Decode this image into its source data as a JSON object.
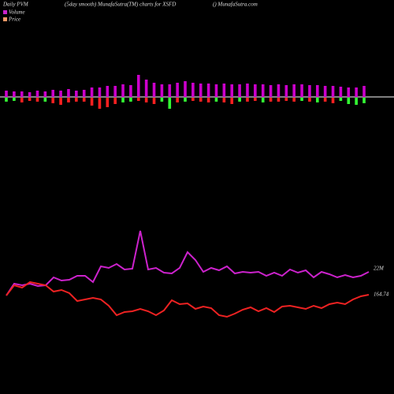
{
  "chart_data": {
    "type": "pvm",
    "title": "Daily PVM",
    "subtitle": "(5day smooth) MunafaSutra(TM) charts for XSFD",
    "source": "() MunafaSutra.com",
    "bar_color": "#cc00cc",
    "upper_values": [
      8,
      7,
      7,
      6,
      8,
      7,
      9,
      8,
      10,
      8,
      9,
      12,
      12,
      14,
      14,
      16,
      15,
      28,
      22,
      18,
      16,
      16,
      18,
      20,
      18,
      17,
      17,
      16,
      17,
      16,
      16,
      17,
      16,
      16,
      15,
      16,
      15,
      16,
      16,
      15,
      15,
      14,
      14,
      13,
      12,
      12,
      14
    ],
    "lower_values": [
      5,
      4,
      6,
      4,
      5,
      5,
      7,
      9,
      6,
      5,
      5,
      10,
      14,
      12,
      8,
      6,
      5,
      4,
      6,
      8,
      5,
      14,
      6,
      5,
      4,
      5,
      6,
      5,
      6,
      8,
      5,
      5,
      4,
      6,
      5,
      5,
      4,
      5,
      4,
      5,
      6,
      5,
      7,
      4,
      8,
      9,
      7
    ],
    "lower_colors": [
      "#33ff33",
      "#33ff33",
      "#ff2020",
      "#ff2020",
      "#ff2020",
      "#33ff33",
      "#ff2020",
      "#ff2020",
      "#ff2020",
      "#ff2020",
      "#ff2020",
      "#ff2020",
      "#ff2020",
      "#ff2020",
      "#ff2020",
      "#33ff33",
      "#33ff33",
      "#ff2020",
      "#ff2020",
      "#ff2020",
      "#33ff33",
      "#33ff33",
      "#ff2020",
      "#33ff33",
      "#ff2020",
      "#ff2020",
      "#ff2020",
      "#33ff33",
      "#ff2020",
      "#ff2020",
      "#33ff33",
      "#ff2020",
      "#ff2020",
      "#33ff33",
      "#ff2020",
      "#ff2020",
      "#ff2020",
      "#ff2020",
      "#33ff33",
      "#ff2020",
      "#33ff33",
      "#ff2020",
      "#ff2020",
      "#33ff33",
      "#33ff33",
      "#33ff33",
      "#33ff33"
    ],
    "series": [
      {
        "name": "Volume",
        "color": "#cc22cc",
        "ylim": [
          -9000000,
          91000000
        ],
        "values": [
          16000000,
          19000000,
          18600000,
          19000000,
          18400000,
          18600000,
          20600000,
          19800000,
          20000000,
          21000000,
          21000000,
          19400000,
          23400000,
          23000000,
          24000000,
          22600000,
          22800000,
          32400000,
          22600000,
          23000000,
          21800000,
          21600000,
          23000000,
          27000000,
          25000000,
          22000000,
          23000000,
          22400000,
          23400000,
          21600000,
          22000000,
          21800000,
          22000000,
          21000000,
          21800000,
          21000000,
          22600000,
          21800000,
          22400000,
          20600000,
          22000000,
          21400000,
          20600000,
          21200000,
          20600000,
          21000000,
          22000000
        ],
        "end_label": "22M"
      },
      {
        "name": "Price",
        "color": "#ee2222",
        "legend_color": "#ff9966",
        "ylim": [
          101.74,
          351.74
        ],
        "values": [
          164.24,
          170.74,
          169.24,
          172.74,
          171.74,
          170.74,
          166.74,
          167.74,
          165.74,
          160.74,
          161.74,
          162.74,
          161.74,
          157.74,
          151.74,
          153.74,
          154.24,
          155.74,
          154.24,
          151.74,
          154.74,
          161.24,
          158.74,
          159.24,
          155.74,
          157.24,
          156.24,
          151.74,
          150.74,
          152.74,
          155.24,
          156.74,
          154.24,
          156.24,
          153.74,
          157.24,
          157.74,
          156.74,
          155.74,
          157.74,
          156.24,
          158.74,
          159.74,
          158.74,
          161.74,
          163.74,
          164.74
        ],
        "end_label": "164.74"
      }
    ]
  }
}
